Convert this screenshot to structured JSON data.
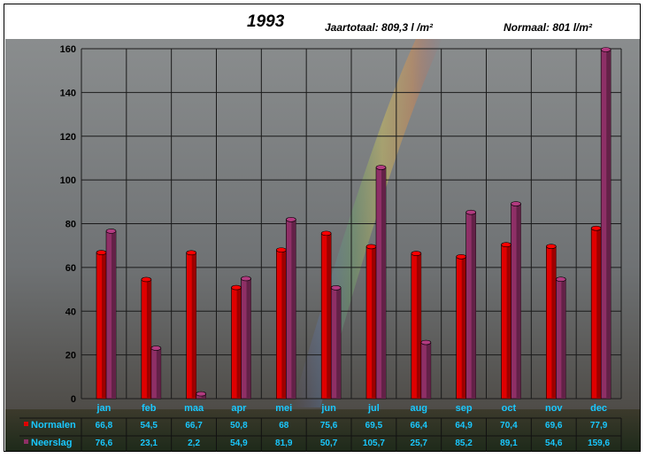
{
  "header": {
    "title": "1993",
    "total": "Jaartotaal: 809,3 l /m²",
    "normal": "Normaal: 801 l/m²"
  },
  "colors": {
    "normalen": "#e00000",
    "neerslag": "#8e2f66",
    "labels": "#19c8ff"
  },
  "chart_data": {
    "type": "bar",
    "categories": [
      "jan",
      "feb",
      "maa",
      "apr",
      "mei",
      "jun",
      "jul",
      "aug",
      "sep",
      "oct",
      "nov",
      "dec"
    ],
    "series": [
      {
        "name": "Normalen",
        "values": [
          66.8,
          54.5,
          66.7,
          50.8,
          68,
          75.6,
          69.5,
          66.4,
          64.9,
          70.4,
          69.6,
          77.9
        ],
        "labels": [
          "66,8",
          "54,5",
          "66,7",
          "50,8",
          "68",
          "75,6",
          "69,5",
          "66,4",
          "64,9",
          "70,4",
          "69,6",
          "77,9"
        ]
      },
      {
        "name": "Neerslag",
        "values": [
          76.6,
          23.1,
          2.2,
          54.9,
          81.9,
          50.7,
          105.7,
          25.7,
          85.2,
          89.1,
          54.6,
          159.6
        ],
        "labels": [
          "76,6",
          "23,1",
          "2,2",
          "54,9",
          "81,9",
          "50,7",
          "105,7",
          "25,7",
          "85,2",
          "89,1",
          "54,6",
          "159,6"
        ]
      }
    ],
    "yticks": [
      "0",
      "20",
      "40",
      "60",
      "80",
      "100",
      "120",
      "140",
      "160"
    ],
    "ylim": [
      0,
      160
    ],
    "grid": true
  }
}
